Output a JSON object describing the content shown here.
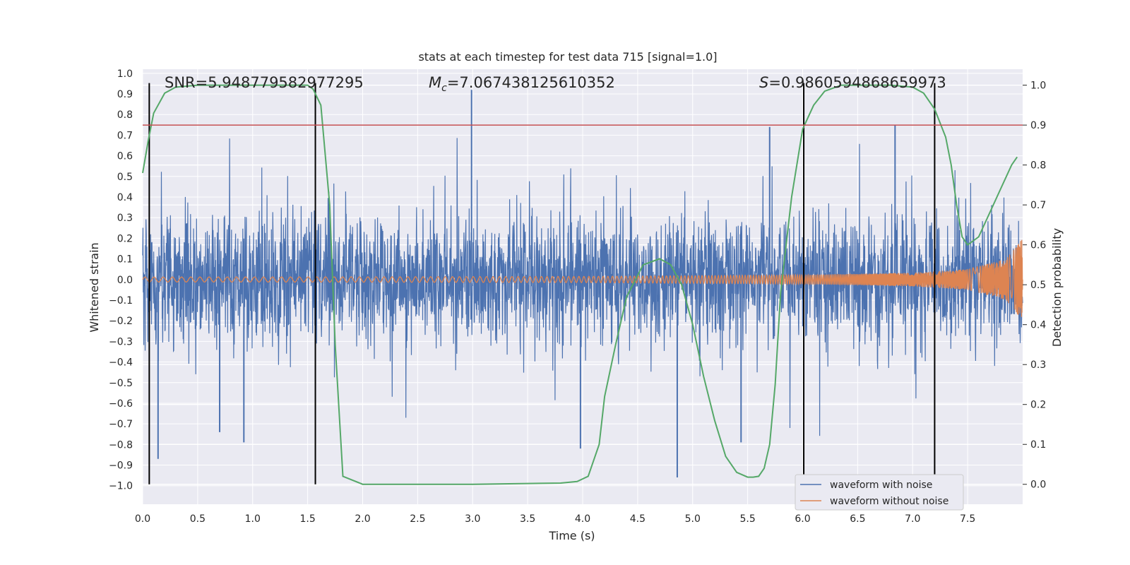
{
  "chart_data": {
    "type": "line",
    "title": "stats at each timestep for test data 715 [signal=1.0]",
    "xlabel": "Time (s)",
    "ylabel_left": "Whitened strain",
    "ylabel_right": "Detection probability",
    "xlim": [
      0.0,
      8.0
    ],
    "ylim_left": [
      -1.09,
      1.02
    ],
    "ylim_right": [
      -0.05,
      1.04
    ],
    "x_ticks": [
      "0.0",
      "0.5",
      "1.0",
      "1.5",
      "2.0",
      "2.5",
      "3.0",
      "3.5",
      "4.0",
      "4.5",
      "5.0",
      "5.5",
      "6.0",
      "6.5",
      "7.0",
      "7.5"
    ],
    "y_left_ticks": [
      "−1.0",
      "−0.9",
      "−0.8",
      "−0.7",
      "−0.6",
      "−0.5",
      "−0.4",
      "−0.3",
      "−0.2",
      "−0.1",
      "0.0",
      "0.1",
      "0.2",
      "0.3",
      "0.4",
      "0.5",
      "0.6",
      "0.7",
      "0.8",
      "0.9",
      "1.0"
    ],
    "y_right_ticks": [
      "0.0",
      "0.1",
      "0.2",
      "0.3",
      "0.4",
      "0.5",
      "0.6",
      "0.7",
      "0.8",
      "0.9",
      "1.0"
    ],
    "grid": true,
    "legend_position": "lower-right",
    "annotations": {
      "snr": "SNR=5.948779582977295",
      "mc": "=7.067438125610352",
      "mc_symbol": "M",
      "mc_sub": "c",
      "s": "=0.9860594868659973",
      "s_symbol": "S"
    },
    "threshold": 0.9,
    "vertical_markers_s": [
      0.06,
      1.57,
      6.01,
      7.2
    ],
    "series": [
      {
        "name": "waveform with noise",
        "color": "#4c72b0",
        "axis": "left",
        "description_values": {
          "envelope_peaks": [
            {
              "x": 0.14,
              "y": -0.87
            },
            {
              "x": 0.7,
              "y": -0.74
            },
            {
              "x": 0.92,
              "y": -0.79
            },
            {
              "x": 2.99,
              "y": 0.92
            },
            {
              "x": 3.98,
              "y": -0.82
            },
            {
              "x": 4.86,
              "y": -0.96
            },
            {
              "x": 5.44,
              "y": -0.79
            },
            {
              "x": 5.7,
              "y": 0.74
            },
            {
              "x": 6.84,
              "y": 0.75
            }
          ]
        }
      },
      {
        "name": "waveform without noise",
        "color": "#dd8452",
        "axis": "left",
        "description_values": {
          "amplitude_at_x": [
            [
              0.0,
              0.012
            ],
            [
              2.0,
              0.013
            ],
            [
              4.0,
              0.015
            ],
            [
              6.0,
              0.022
            ],
            [
              7.0,
              0.033
            ],
            [
              7.5,
              0.05
            ],
            [
              7.85,
              0.1
            ],
            [
              8.0,
              0.2
            ]
          ]
        }
      },
      {
        "name": "",
        "color": "#55a868",
        "axis": "right",
        "x": [
          0.0,
          0.05,
          0.1,
          0.2,
          0.3,
          0.5,
          1.0,
          1.5,
          1.55,
          1.62,
          1.7,
          1.75,
          1.82,
          2.0,
          3.0,
          3.8,
          3.95,
          4.05,
          4.15,
          4.2,
          4.3,
          4.4,
          4.55,
          4.7,
          4.8,
          4.9,
          5.0,
          5.1,
          5.2,
          5.3,
          5.4,
          5.5,
          5.55,
          5.6,
          5.65,
          5.7,
          5.75,
          5.8,
          5.9,
          6.0,
          6.1,
          6.2,
          6.35,
          6.5,
          6.8,
          7.0,
          7.1,
          7.2,
          7.3,
          7.35,
          7.4,
          7.45,
          7.5,
          7.6,
          7.7,
          7.8,
          7.9,
          7.95
        ],
        "values": [
          0.78,
          0.86,
          0.93,
          0.98,
          0.995,
          1.0,
          1.0,
          1.0,
          0.99,
          0.95,
          0.7,
          0.35,
          0.02,
          0.0,
          0.0,
          0.003,
          0.007,
          0.02,
          0.1,
          0.22,
          0.35,
          0.47,
          0.55,
          0.565,
          0.55,
          0.5,
          0.4,
          0.27,
          0.16,
          0.07,
          0.03,
          0.018,
          0.018,
          0.02,
          0.04,
          0.1,
          0.25,
          0.48,
          0.72,
          0.89,
          0.95,
          0.985,
          1.0,
          1.0,
          1.0,
          0.995,
          0.98,
          0.94,
          0.87,
          0.8,
          0.7,
          0.62,
          0.6,
          0.62,
          0.68,
          0.74,
          0.8,
          0.82
        ]
      },
      {
        "name": "",
        "color": "#c44e52",
        "axis": "right",
        "x": [
          0.0,
          8.0
        ],
        "values": [
          0.9,
          0.9
        ]
      }
    ]
  }
}
